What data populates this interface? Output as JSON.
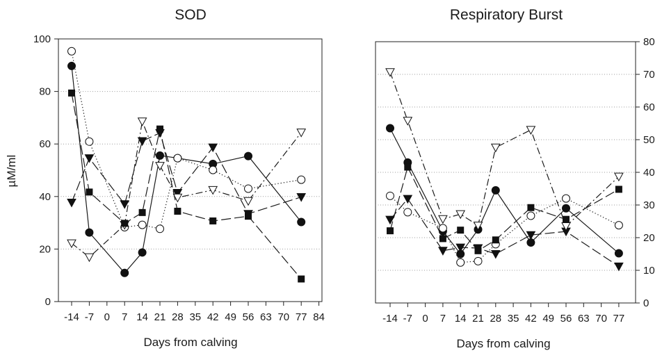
{
  "chart_data": [
    {
      "type": "line",
      "title": "SOD",
      "xlabel": "Days from calving",
      "ylabel": "µM/ml",
      "y_axis_side": "left",
      "ylim": [
        0,
        100
      ],
      "yticks": [
        0,
        20,
        40,
        60,
        80,
        100
      ],
      "xticks": [
        "-14",
        "-7",
        "0",
        "7",
        "14",
        "21",
        "28",
        "35",
        "42",
        "49",
        "56",
        "63",
        "70",
        "77",
        "84"
      ],
      "grid": true,
      "series": [
        {
          "marker": "filled-circle",
          "line": "solid",
          "points": [
            [
              -14,
              89.7
            ],
            [
              -7,
              26.3
            ],
            [
              7,
              10.9
            ],
            [
              14,
              18.7
            ],
            [
              21,
              55.6
            ],
            [
              28,
              54.6
            ],
            [
              42,
              52.4
            ],
            [
              56,
              55.4
            ],
            [
              77,
              30.3
            ]
          ]
        },
        {
          "marker": "open-circle",
          "line": "dotted",
          "points": [
            [
              -14,
              95.3
            ],
            [
              -7,
              60.9
            ],
            [
              7,
              28.3
            ],
            [
              14,
              29.2
            ],
            [
              21,
              27.7
            ],
            [
              28,
              54.6
            ],
            [
              42,
              50.1
            ],
            [
              56,
              43.0
            ],
            [
              77,
              46.4
            ]
          ]
        },
        {
          "marker": "filled-triangle-down",
          "line": "long-dash",
          "points": [
            [
              -14,
              37.7
            ],
            [
              -7,
              54.6
            ],
            [
              7,
              37.1
            ],
            [
              14,
              61.1
            ],
            [
              21,
              64.2
            ],
            [
              28,
              41.4
            ],
            [
              42,
              58.7
            ],
            [
              56,
              33.4
            ],
            [
              77,
              39.8
            ]
          ]
        },
        {
          "marker": "open-triangle-down",
          "line": "dash-dot",
          "points": [
            [
              -14,
              22.2
            ],
            [
              -7,
              16.9
            ],
            [
              7,
              29.2
            ],
            [
              14,
              68.6
            ],
            [
              21,
              51.7
            ],
            [
              28,
              39.6
            ],
            [
              42,
              42.5
            ],
            [
              56,
              38.3
            ],
            [
              77,
              64.4
            ]
          ]
        },
        {
          "marker": "filled-square",
          "line": "long-dash",
          "points": [
            [
              -14,
              79.4
            ],
            [
              -7,
              41.7
            ],
            [
              7,
              29.8
            ],
            [
              14,
              33.9
            ],
            [
              21,
              65.7
            ],
            [
              28,
              34.4
            ],
            [
              42,
              30.7
            ],
            [
              56,
              32.5
            ],
            [
              77,
              8.6
            ]
          ]
        }
      ]
    },
    {
      "type": "line",
      "title": "Respiratory Burst",
      "xlabel": "Days from calving",
      "ylabel": "",
      "y_axis_side": "right",
      "ylim": [
        0,
        80
      ],
      "yticks": [
        0,
        10,
        20,
        30,
        40,
        50,
        60,
        70,
        80
      ],
      "xticks": [
        "-14",
        "-7",
        "0",
        "7",
        "14",
        "21",
        "28",
        "35",
        "42",
        "49",
        "56",
        "63",
        "70",
        "77"
      ],
      "grid": true,
      "series": [
        {
          "marker": "filled-circle",
          "line": "solid",
          "points": [
            [
              -14,
              53.5
            ],
            [
              -7,
              43.0
            ],
            [
              7,
              22.0
            ],
            [
              14,
              15.0
            ],
            [
              21,
              22.5
            ],
            [
              28,
              34.5
            ],
            [
              42,
              18.5
            ],
            [
              56,
              29.0
            ],
            [
              77,
              15.2
            ]
          ]
        },
        {
          "marker": "open-circle",
          "line": "dotted",
          "points": [
            [
              -14,
              32.8
            ],
            [
              -7,
              27.8
            ],
            [
              7,
              22.9
            ],
            [
              14,
              12.4
            ],
            [
              21,
              12.8
            ],
            [
              28,
              18.0
            ],
            [
              42,
              26.7
            ],
            [
              56,
              32.0
            ],
            [
              77,
              23.8
            ]
          ]
        },
        {
          "marker": "filled-triangle-down",
          "line": "long-dash",
          "points": [
            [
              -14,
              25.5
            ],
            [
              -7,
              31.9
            ],
            [
              7,
              16.0
            ],
            [
              14,
              17.0
            ],
            [
              21,
              16.8
            ],
            [
              28,
              15.0
            ],
            [
              42,
              20.8
            ],
            [
              56,
              21.9
            ],
            [
              77,
              11.2
            ]
          ]
        },
        {
          "marker": "open-triangle-down",
          "line": "dash-dot",
          "points": [
            [
              -14,
              70.7
            ],
            [
              -7,
              55.8
            ],
            [
              7,
              25.7
            ],
            [
              14,
              27.2
            ],
            [
              21,
              23.7
            ],
            [
              28,
              47.6
            ],
            [
              42,
              53.0
            ],
            [
              56,
              23.5
            ],
            [
              77,
              38.7
            ]
          ]
        },
        {
          "marker": "filled-square",
          "line": "long-dash",
          "points": [
            [
              -14,
              22.1
            ],
            [
              -7,
              41.6
            ],
            [
              7,
              19.7
            ],
            [
              14,
              22.3
            ],
            [
              21,
              16.0
            ],
            [
              28,
              19.3
            ],
            [
              42,
              29.2
            ],
            [
              56,
              25.6
            ],
            [
              77,
              34.8
            ]
          ]
        }
      ]
    }
  ]
}
